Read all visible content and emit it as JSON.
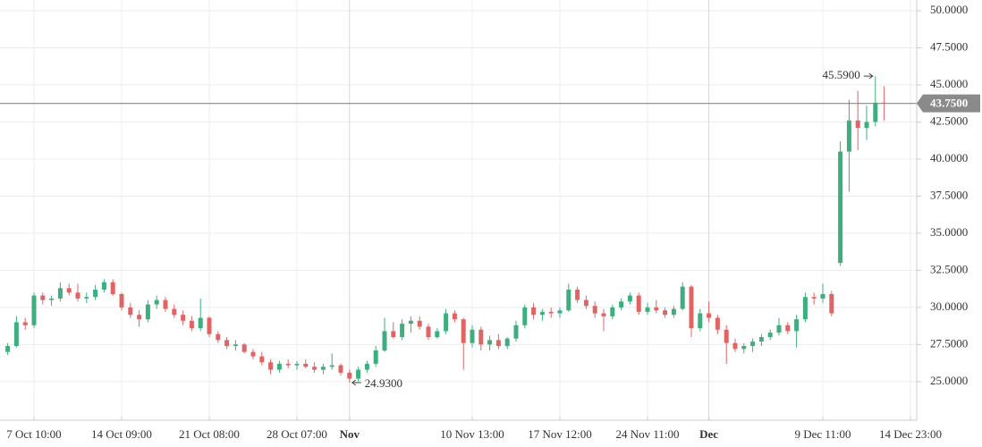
{
  "chart_data": {
    "type": "candlestick",
    "categories": [
      null,
      null,
      null,
      "7 Oct 10:00",
      null,
      null,
      null,
      null,
      null,
      null,
      null,
      null,
      null,
      "14 Oct 09:00",
      null,
      null,
      null,
      null,
      null,
      null,
      null,
      null,
      null,
      "21 Oct 08:00",
      null,
      null,
      null,
      null,
      null,
      null,
      null,
      null,
      null,
      "28 Oct 07:00",
      null,
      null,
      null,
      null,
      null,
      "Nov",
      null,
      null,
      null,
      null,
      null,
      null,
      null,
      null,
      null,
      null,
      null,
      null,
      null,
      "10 Nov 13:00",
      null,
      null,
      null,
      null,
      null,
      null,
      null,
      null,
      null,
      "17 Nov 12:00",
      null,
      null,
      null,
      null,
      null,
      null,
      null,
      null,
      null,
      "24 Nov 11:00",
      null,
      null,
      null,
      null,
      null,
      null,
      "Dec",
      null,
      null,
      null,
      null,
      null,
      null,
      null,
      null,
      null,
      null,
      null,
      null,
      "9 Dec 11:00",
      null,
      null,
      null,
      null,
      null,
      null,
      null,
      null,
      null,
      "14 Dec 23:00"
    ],
    "open": [
      27.0,
      27.4,
      29.0,
      28.8,
      30.8,
      30.5,
      30.6,
      31.3,
      31.0,
      30.6,
      30.7,
      31.2,
      31.7,
      30.9,
      30.0,
      29.5,
      29.2,
      30.2,
      30.5,
      29.9,
      29.5,
      29.1,
      28.6,
      29.3,
      28.2,
      27.8,
      27.4,
      27.5,
      27.0,
      26.7,
      26.3,
      25.8,
      26.2,
      26.1,
      26.2,
      26.0,
      25.8,
      26.0,
      26.1,
      25.6,
      25.2,
      25.8,
      26.2,
      27.1,
      28.4,
      28.0,
      28.9,
      29.1,
      28.7,
      28.0,
      28.4,
      29.6,
      29.2,
      27.6,
      28.5,
      27.5,
      27.8,
      27.4,
      27.9,
      28.8,
      30.0,
      29.5,
      29.7,
      29.6,
      29.8,
      31.2,
      30.5,
      30.1,
      29.6,
      29.4,
      30.0,
      30.4,
      30.8,
      29.7,
      30.0,
      29.8,
      29.5,
      29.9,
      31.4,
      28.6,
      29.6,
      29.3,
      28.5,
      27.6,
      27.2,
      27.4,
      27.7,
      28.0,
      28.3,
      28.8,
      28.4,
      29.2,
      30.7,
      30.6,
      30.9,
      33.0,
      40.5,
      42.6,
      42.1,
      42.5,
      43.8,
      null,
      null,
      null
    ],
    "high": [
      27.6,
      29.4,
      29.3,
      31.0,
      31.0,
      30.8,
      31.7,
      31.6,
      31.6,
      31.0,
      31.5,
      31.9,
      31.9,
      31.0,
      30.3,
      29.8,
      30.5,
      30.8,
      30.7,
      30.2,
      29.8,
      29.4,
      30.6,
      29.4,
      28.4,
      28.0,
      27.8,
      27.6,
      27.2,
      27.0,
      26.5,
      26.4,
      26.5,
      26.4,
      26.5,
      26.3,
      26.2,
      26.9,
      26.2,
      25.8,
      26.0,
      26.4,
      27.4,
      29.3,
      29.0,
      29.2,
      29.4,
      29.4,
      28.9,
      28.6,
      29.9,
      29.8,
      29.3,
      28.8,
      28.7,
      28.1,
      28.2,
      28.0,
      29.1,
      30.2,
      30.3,
      29.9,
      30.0,
      30.0,
      31.6,
      31.4,
      30.8,
      30.4,
      29.9,
      30.2,
      30.6,
      31.0,
      31.0,
      30.3,
      30.5,
      30.0,
      30.1,
      31.7,
      31.5,
      29.9,
      30.4,
      29.5,
      28.8,
      27.9,
      27.6,
      27.9,
      28.2,
      28.5,
      29.3,
      29.0,
      29.5,
      31.0,
      31.0,
      31.6,
      31.1,
      41.2,
      44.0,
      44.6,
      43.6,
      45.59,
      44.9,
      null,
      null,
      null
    ],
    "low": [
      26.8,
      27.3,
      28.5,
      28.6,
      30.2,
      30.1,
      30.4,
      30.8,
      30.4,
      30.3,
      30.5,
      31.0,
      30.8,
      29.8,
      29.3,
      28.7,
      29.0,
      29.9,
      29.7,
      29.3,
      28.8,
      28.4,
      28.4,
      28.0,
      27.6,
      27.2,
      27.1,
      26.9,
      26.5,
      26.1,
      25.5,
      25.6,
      25.9,
      25.8,
      25.9,
      25.6,
      25.5,
      25.8,
      25.4,
      24.93,
      25.0,
      25.6,
      26.0,
      27.0,
      27.9,
      27.8,
      28.3,
      28.5,
      27.8,
      27.9,
      28.2,
      29.0,
      25.8,
      27.3,
      27.1,
      27.1,
      27.2,
      27.2,
      27.7,
      28.6,
      29.2,
      29.1,
      29.3,
      29.3,
      29.7,
      30.3,
      29.9,
      29.3,
      28.4,
      29.2,
      29.8,
      30.2,
      29.5,
      29.5,
      29.6,
      29.3,
      29.3,
      29.8,
      28.0,
      28.4,
      29.0,
      28.2,
      26.2,
      27.0,
      26.9,
      27.0,
      27.4,
      27.8,
      28.1,
      28.2,
      27.3,
      29.0,
      30.2,
      30.3,
      29.4,
      32.8,
      37.8,
      40.6,
      41.3,
      42.2,
      42.6,
      null,
      null,
      null
    ],
    "close": [
      27.4,
      29.0,
      28.8,
      30.8,
      30.5,
      30.6,
      31.3,
      31.0,
      30.6,
      30.7,
      31.2,
      31.7,
      30.9,
      30.0,
      29.5,
      29.2,
      30.2,
      30.5,
      29.9,
      29.5,
      29.1,
      28.6,
      29.3,
      28.2,
      27.8,
      27.4,
      27.5,
      27.0,
      26.7,
      26.3,
      25.8,
      26.2,
      26.1,
      26.2,
      26.0,
      25.8,
      26.0,
      26.1,
      25.6,
      25.2,
      25.8,
      26.2,
      27.1,
      28.4,
      28.0,
      28.9,
      29.1,
      28.7,
      28.0,
      28.4,
      29.6,
      29.2,
      27.6,
      28.5,
      27.5,
      27.8,
      27.4,
      27.9,
      28.8,
      30.0,
      29.5,
      29.7,
      29.6,
      29.8,
      31.2,
      30.5,
      30.1,
      29.6,
      29.4,
      30.0,
      30.4,
      30.8,
      29.7,
      30.0,
      29.8,
      29.5,
      29.9,
      31.4,
      28.6,
      29.6,
      29.3,
      28.5,
      27.6,
      27.2,
      27.4,
      27.7,
      28.0,
      28.3,
      28.8,
      28.4,
      29.2,
      30.7,
      30.6,
      30.9,
      29.6,
      40.5,
      42.6,
      42.1,
      42.5,
      43.8,
      43.75,
      null,
      null,
      null
    ],
    "up_color": "#3fae7f",
    "down_color": "#e06464",
    "ylim": [
      22.4,
      50.72
    ],
    "yticks": [
      {
        "value": 25,
        "label": "25.0000"
      },
      {
        "value": 27.5,
        "label": "27.5000"
      },
      {
        "value": 30,
        "label": "30.0000"
      },
      {
        "value": 32.5,
        "label": "32.5000"
      },
      {
        "value": 35,
        "label": "35.0000"
      },
      {
        "value": 37.5,
        "label": "37.5000"
      },
      {
        "value": 40,
        "label": "40.0000"
      },
      {
        "value": 42.5,
        "label": "42.5000"
      },
      {
        "value": 45,
        "label": "45.0000"
      },
      {
        "value": 47.5,
        "label": "47.5000"
      },
      {
        "value": 50,
        "label": "50.0000"
      }
    ],
    "grid": true,
    "last_price": {
      "value": 43.75,
      "label": "43.7500"
    },
    "high_label": {
      "value": 45.59,
      "label": "45.5900"
    },
    "low_label": {
      "value": 24.93,
      "label": "24.9300"
    }
  }
}
